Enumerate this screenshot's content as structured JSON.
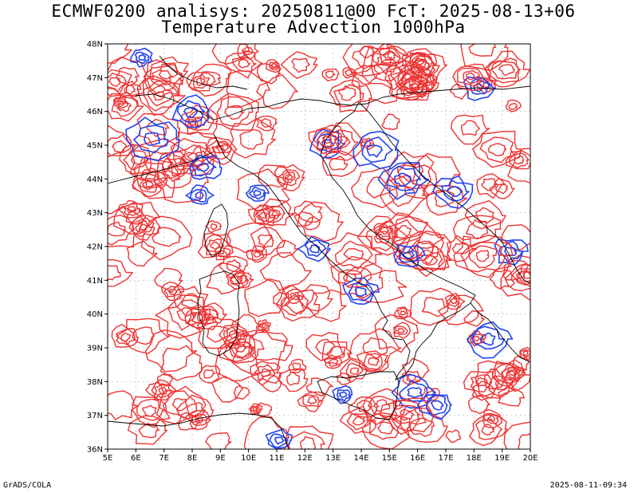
{
  "header": {
    "title_line1": "ECMWF0200 analisys: 20250811@00 FcT: 2025-08-13+06",
    "title_line2": "Temperature Advection 1000hPa"
  },
  "map": {
    "lat_labels": [
      "48N",
      "47N",
      "46N",
      "45N",
      "44N",
      "43N",
      "42N",
      "41N",
      "40N",
      "39N",
      "38N",
      "37N",
      "36N"
    ],
    "lon_labels": [
      "5E",
      "6E",
      "7E",
      "8E",
      "9E",
      "10E",
      "11E",
      "12E",
      "13E",
      "14E",
      "15E",
      "16E",
      "17E",
      "18E",
      "19E",
      "20E"
    ],
    "colors": {
      "positive": "#ee3333",
      "negative": "#2244ee",
      "coast": "#000000",
      "grid": "#888888"
    }
  },
  "footer": {
    "left": "GrADS/COLA",
    "right": "2025-08-11-09:34"
  }
}
